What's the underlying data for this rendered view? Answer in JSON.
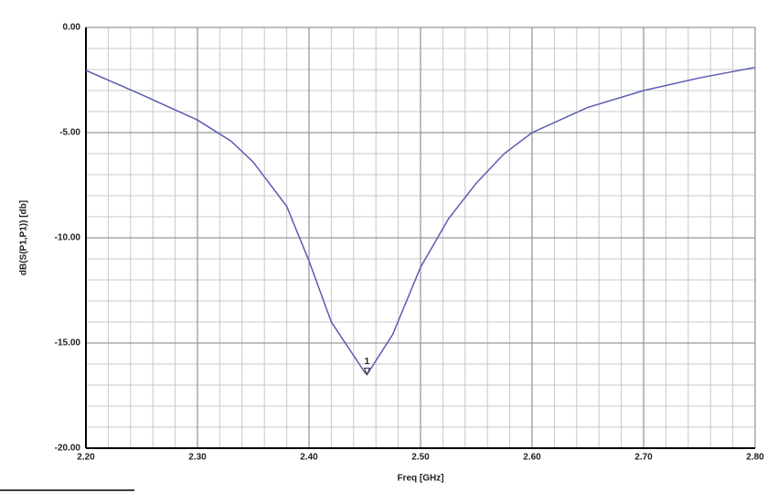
{
  "chart_data": {
    "type": "line",
    "x_label": "Freq [GHz]",
    "y_label": "dB(S(P1,P1)) [db]",
    "xlim": [
      2.2,
      2.8
    ],
    "ylim": [
      -20,
      0
    ],
    "xticks": [
      {
        "value": 2.2,
        "label": "2.20"
      },
      {
        "value": 2.3,
        "label": "2.30"
      },
      {
        "value": 2.4,
        "label": "2.40"
      },
      {
        "value": 2.5,
        "label": "2.50"
      },
      {
        "value": 2.6,
        "label": "2.60"
      },
      {
        "value": 2.7,
        "label": "2.70"
      },
      {
        "value": 2.8,
        "label": "2.80"
      }
    ],
    "yticks": [
      {
        "value": 0,
        "label": "0.00"
      },
      {
        "value": -5,
        "label": "-5.00"
      },
      {
        "value": -10,
        "label": "-10.00"
      },
      {
        "value": -15,
        "label": "-15.00"
      },
      {
        "value": -20,
        "label": "-20.00"
      }
    ],
    "grid": true,
    "x": [
      2.2,
      2.25,
      2.3,
      2.33,
      2.35,
      2.38,
      2.4,
      2.42,
      2.43,
      2.45,
      2.452,
      2.475,
      2.5,
      2.525,
      2.55,
      2.575,
      2.6,
      2.65,
      2.7,
      2.75,
      2.8
    ],
    "series": [
      {
        "name": "dB(S(P1,P1))",
        "color": "#5b5bb3",
        "values": [
          -2.04,
          -3.2,
          -4.4,
          -5.4,
          -6.4,
          -8.5,
          -11.1,
          -14.0,
          -14.8,
          -16.4,
          -16.5,
          -14.6,
          -11.4,
          -9.1,
          -7.4,
          -6.0,
          -5.0,
          -3.8,
          -3.0,
          -2.4,
          -1.9
        ]
      }
    ],
    "annotations": [
      {
        "text": "1",
        "x": 2.452,
        "y": -16.5
      }
    ]
  }
}
